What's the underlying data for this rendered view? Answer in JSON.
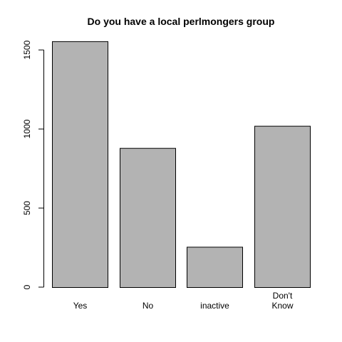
{
  "chart_data": {
    "type": "bar",
    "title": "Do you have a local perlmongers group",
    "xlabel": "",
    "ylabel": "",
    "categories": [
      "Yes",
      "No",
      "inactive",
      "Don't\nKnow"
    ],
    "values": [
      1555,
      880,
      255,
      1020
    ],
    "ylim": [
      0,
      1550
    ],
    "yticks": [
      0,
      500,
      1000,
      1500
    ],
    "grid": false,
    "legend": "none",
    "colors": {
      "bar_fill": "#b3b3b3",
      "bar_stroke": "#000000",
      "axis": "#000000",
      "background": "#ffffff"
    }
  }
}
